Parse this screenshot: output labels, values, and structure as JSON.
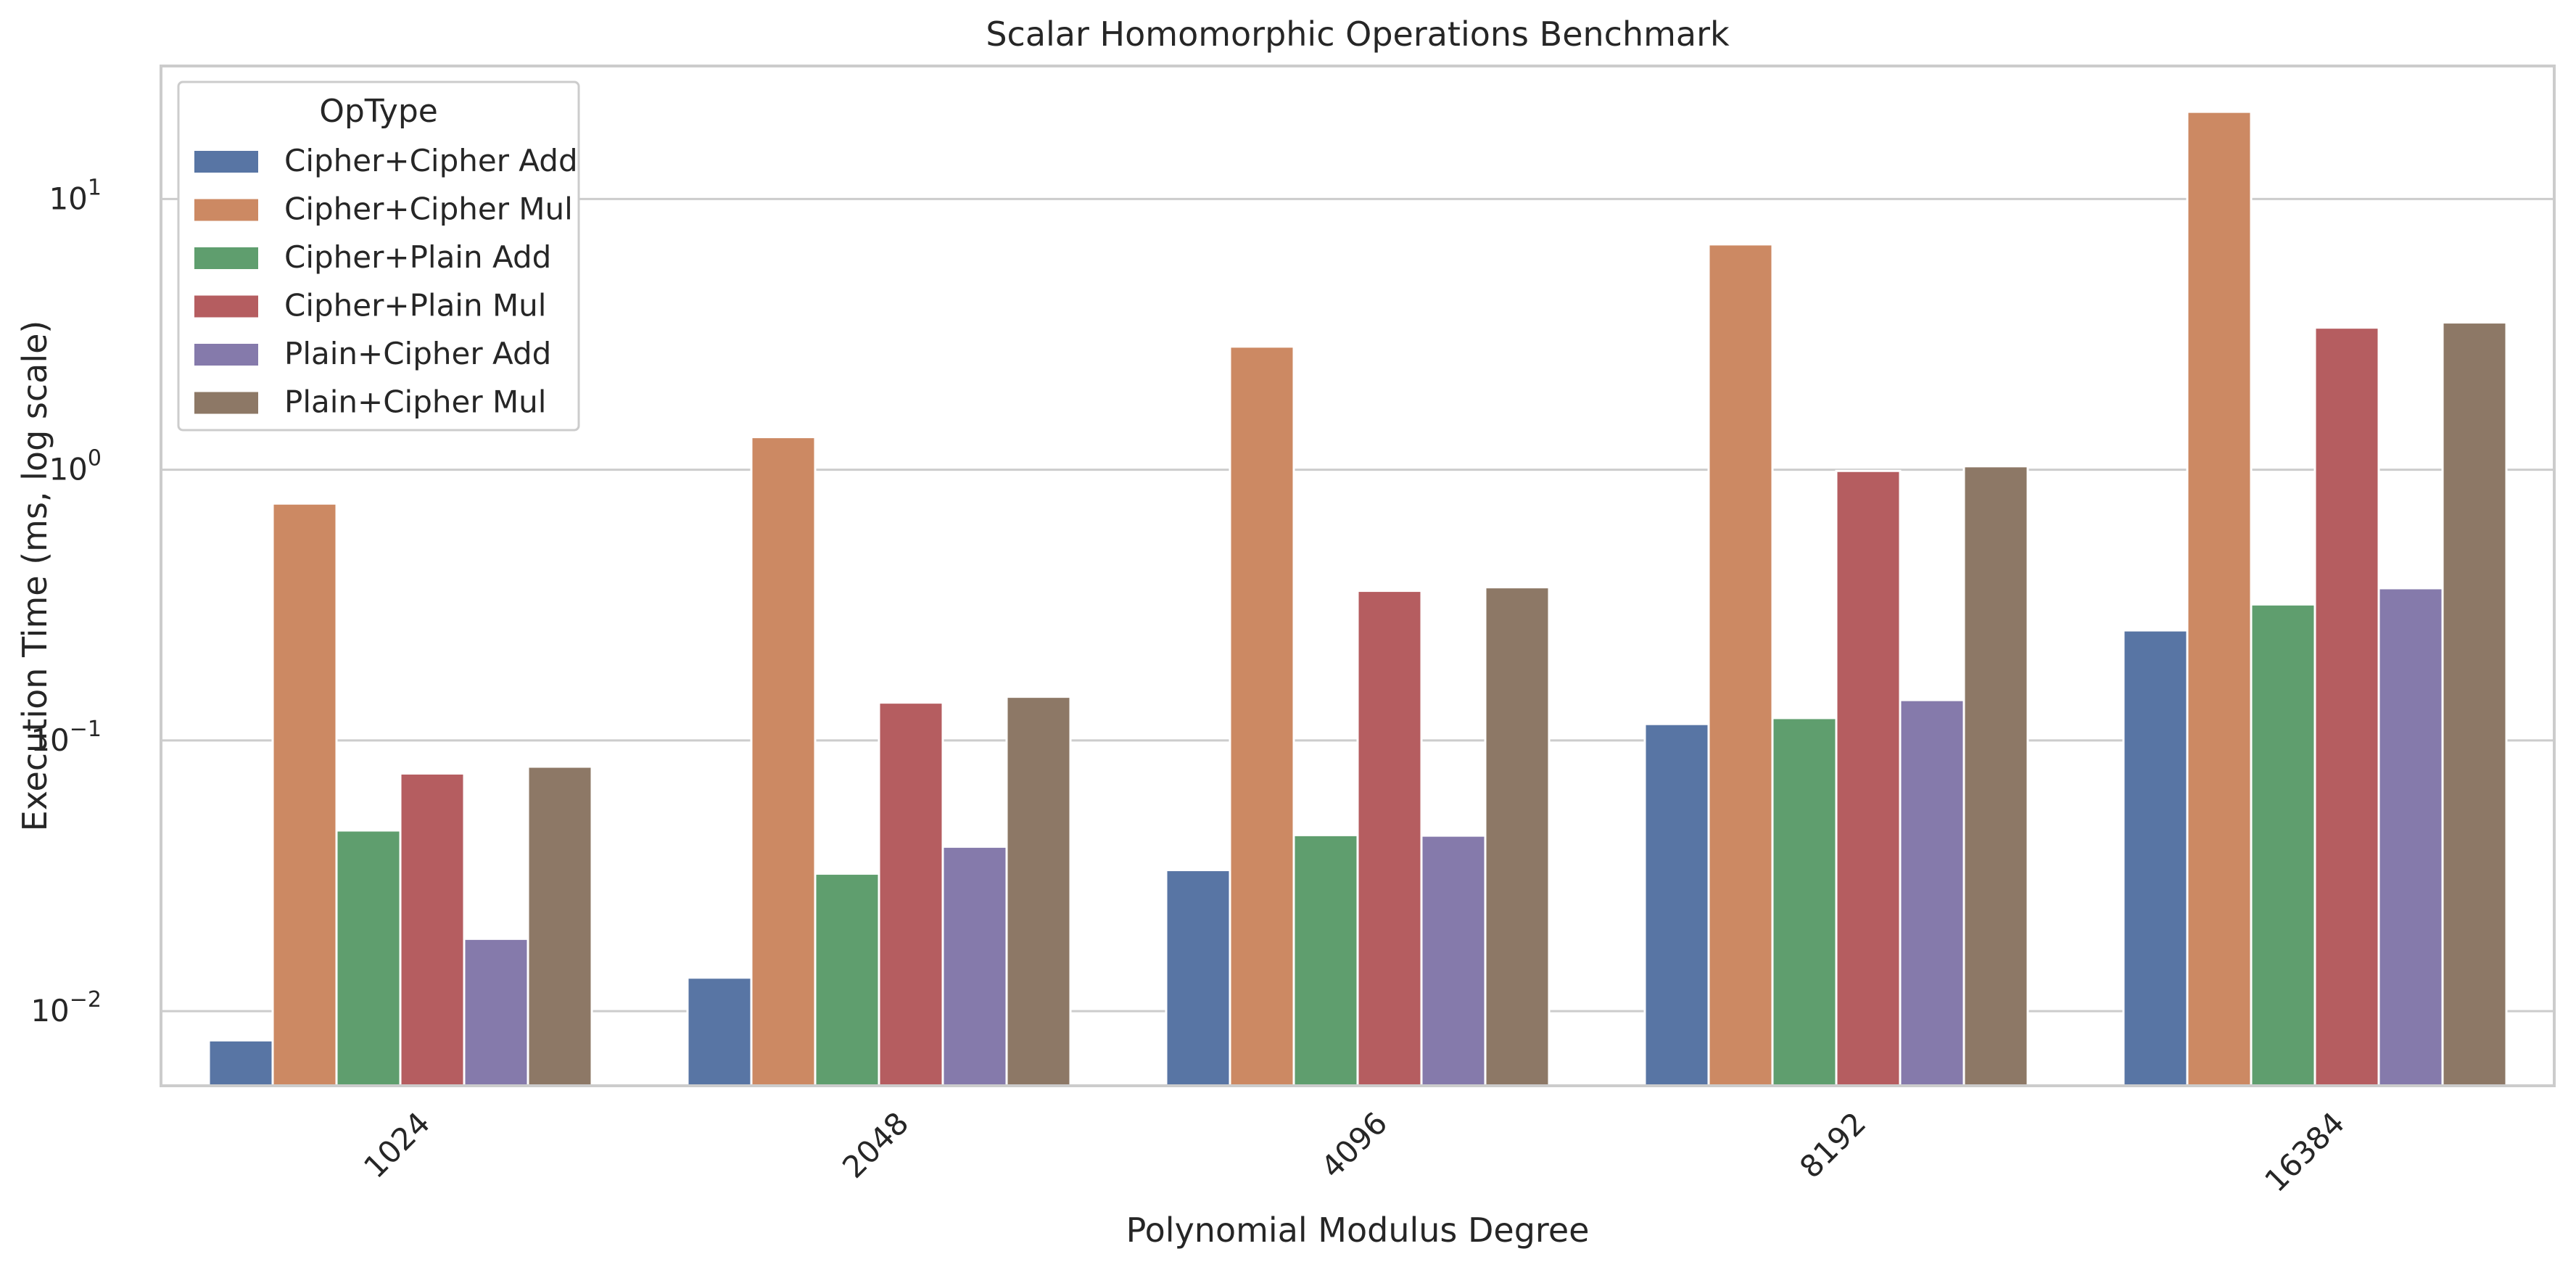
{
  "chart_data": {
    "type": "bar",
    "title": "Scalar Homomorphic Operations Benchmark",
    "xlabel": "Polynomial Modulus Degree",
    "ylabel": "Execution Time (ms, log scale)",
    "yscale": "log",
    "ylim": [
      0.0053,
      31
    ],
    "y_ticks": [
      0.01,
      0.1,
      1,
      10
    ],
    "y_tick_labels": [
      {
        "base": "10",
        "exp": "−2"
      },
      {
        "base": "10",
        "exp": "−1"
      },
      {
        "base": "10",
        "exp": "0"
      },
      {
        "base": "10",
        "exp": "1"
      }
    ],
    "grid": "y",
    "categories": [
      "1024",
      "2048",
      "4096",
      "8192",
      "16384"
    ],
    "legend": {
      "title": "OpType",
      "position": "top-left"
    },
    "series": [
      {
        "name": "Cipher+Cipher Add",
        "color": "#5875a4",
        "values": [
          0.0078,
          0.0133,
          0.0332,
          0.115,
          0.255
        ]
      },
      {
        "name": "Cipher+Cipher Mul",
        "color": "#cc8963",
        "values": [
          0.75,
          1.32,
          2.85,
          6.8,
          21.0
        ]
      },
      {
        "name": "Cipher+Plain Add",
        "color": "#5f9e6e",
        "values": [
          0.0465,
          0.0322,
          0.0447,
          0.121,
          0.318
        ]
      },
      {
        "name": "Cipher+Plain Mul",
        "color": "#b55d60",
        "values": [
          0.0755,
          0.138,
          0.357,
          0.99,
          3.35
        ]
      },
      {
        "name": "Plain+Cipher Add",
        "color": "#857aab",
        "values": [
          0.0185,
          0.0405,
          0.0445,
          0.141,
          0.365
        ]
      },
      {
        "name": "Plain+Cipher Mul",
        "color": "#8d7866",
        "values": [
          0.08,
          0.145,
          0.368,
          1.03,
          3.5
        ]
      }
    ]
  }
}
